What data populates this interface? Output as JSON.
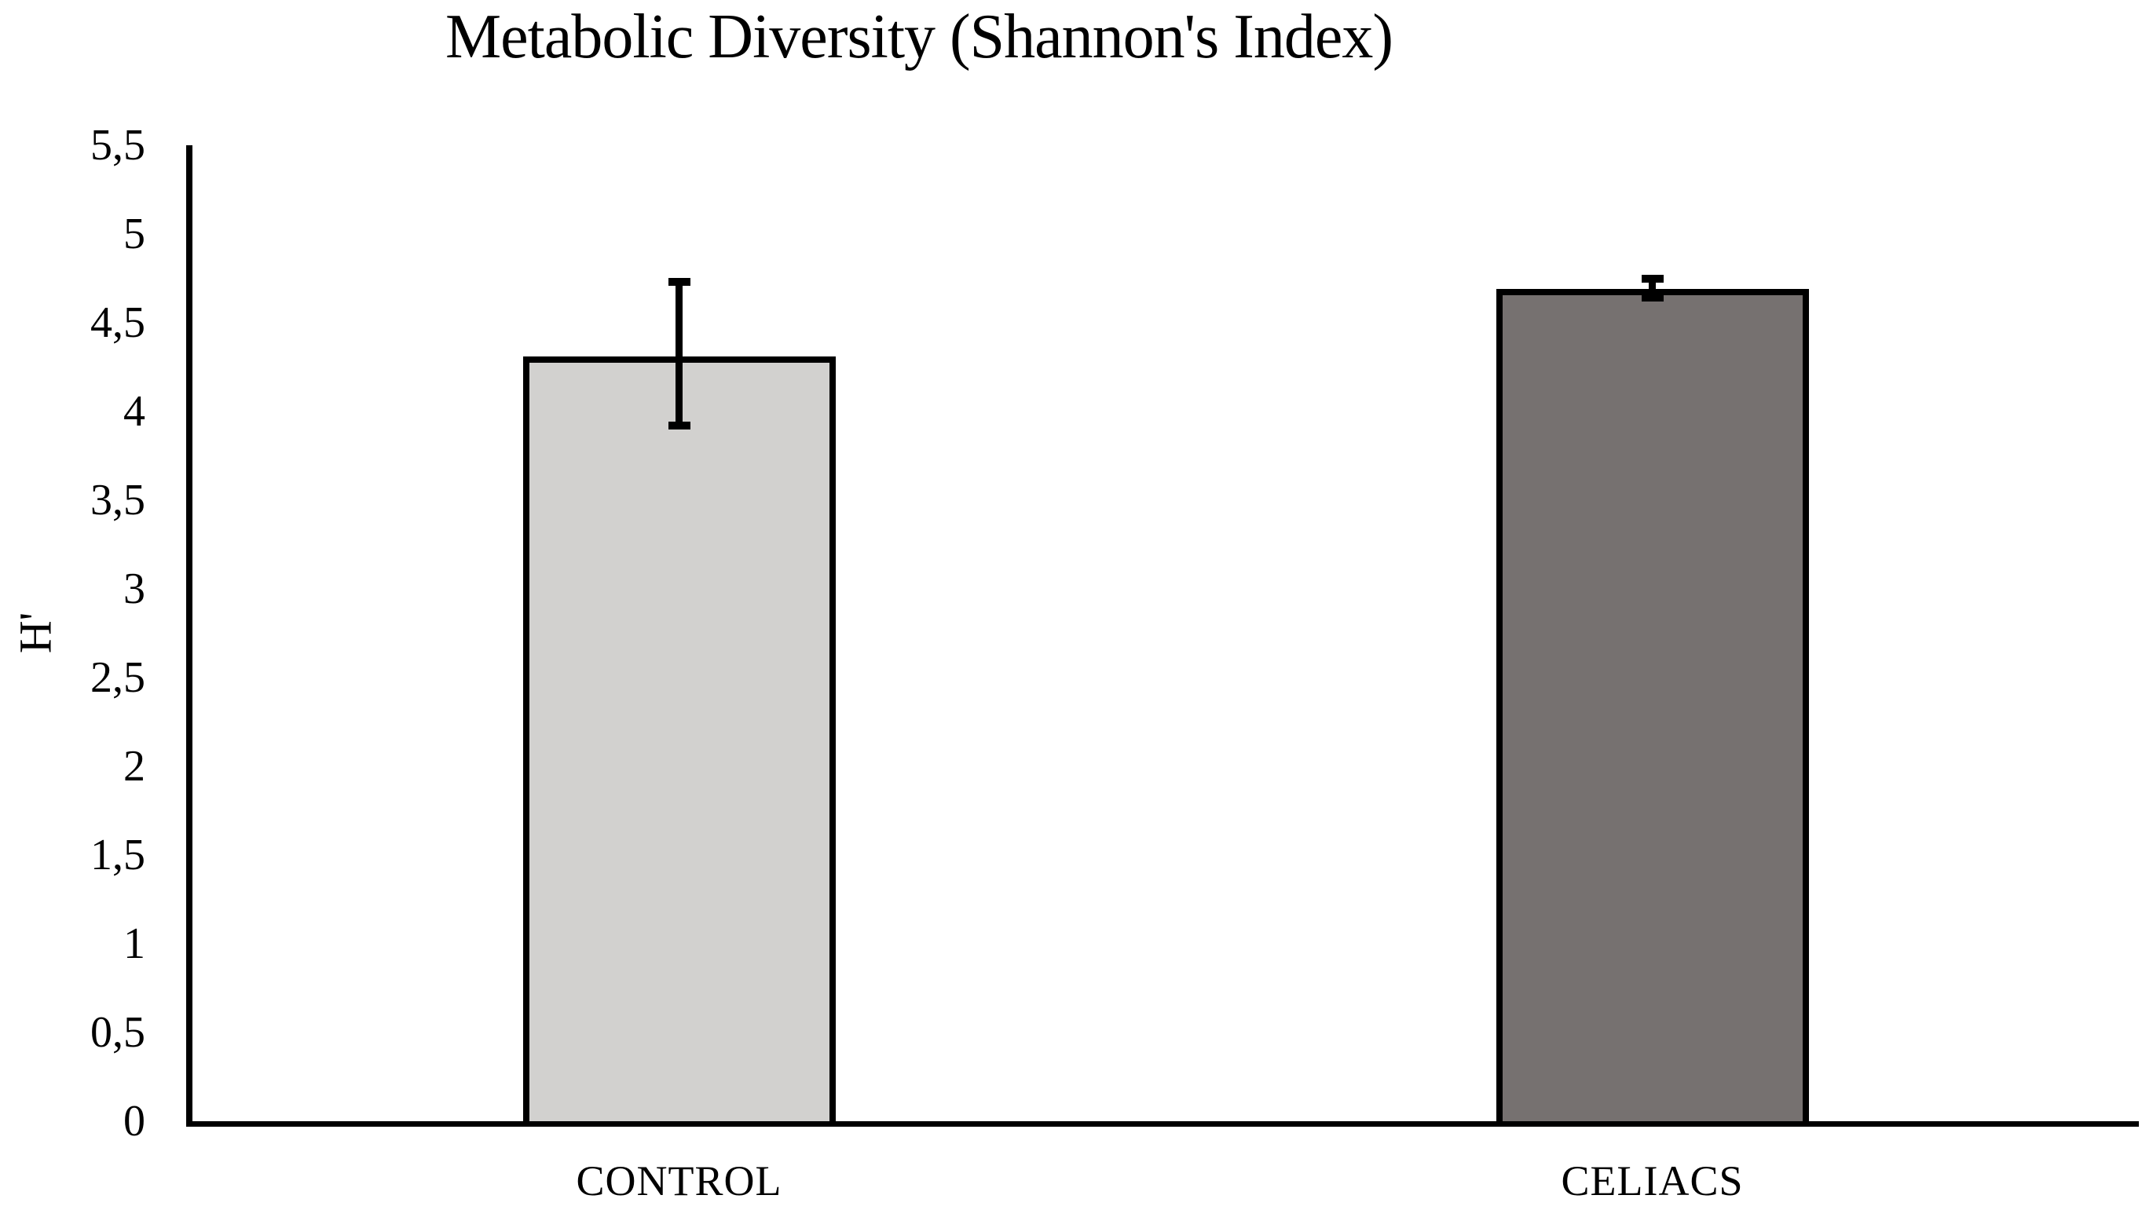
{
  "chart_data": {
    "type": "bar",
    "title": "Metabolic Diversity (Shannon's Index)",
    "ylabel": "H'",
    "xlabel": "",
    "categories": [
      "CONTROL",
      "CELIACS"
    ],
    "values": [
      4.31,
      4.69
    ],
    "error_low": [
      3.92,
      4.64
    ],
    "error_high": [
      4.73,
      4.75
    ],
    "bar_colors": [
      "#d2d1cf",
      "#767170"
    ],
    "bar_border_color": "#000000",
    "axis_color": "#000000",
    "background_color": "#ffffff",
    "ylim": [
      0,
      5.5
    ],
    "ytick_step": 0.5,
    "ytick_labels": [
      "0",
      "0,5",
      "1",
      "1,5",
      "2",
      "2,5",
      "3",
      "3,5",
      "4",
      "4,5",
      "5",
      "5,5"
    ],
    "decimal_separator": ",",
    "grid": false,
    "legend": null
  }
}
